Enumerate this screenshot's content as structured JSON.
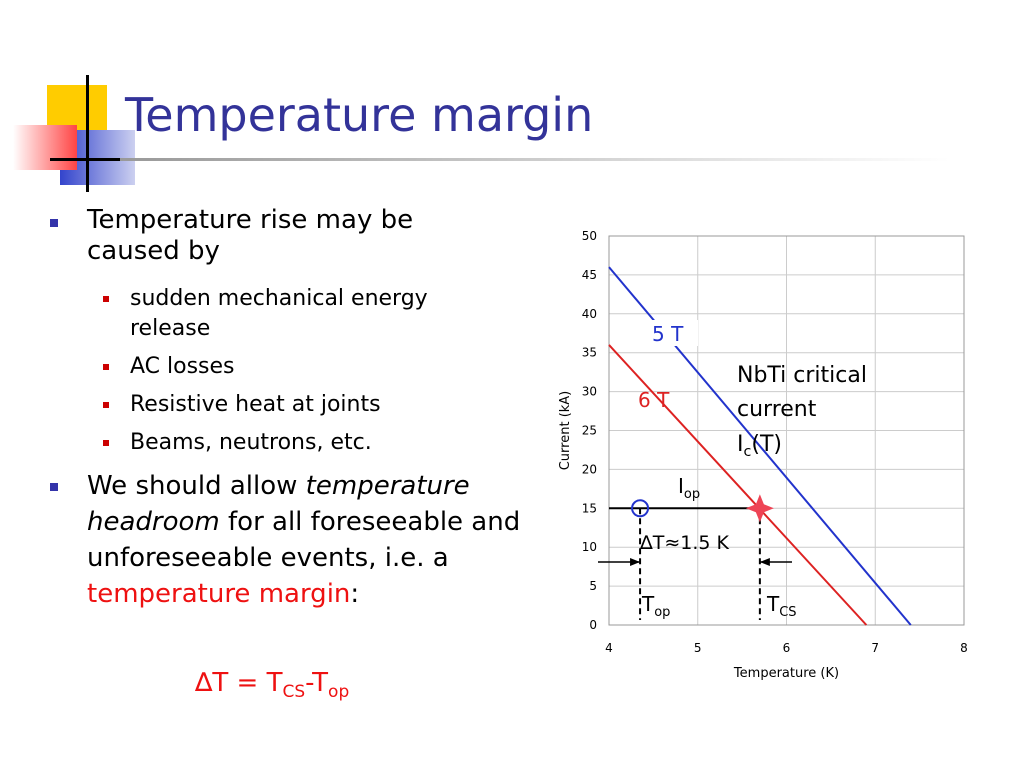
{
  "slide": {
    "title": "Temperature margin",
    "bullets": [
      {
        "text": "Temperature rise may be caused by",
        "sub": [
          "sudden mechanical energy release",
          "AC losses",
          "Resistive heat at joints",
          "Beams, neutrons, etc."
        ]
      },
      {
        "parts": [
          "We should allow ",
          "temperature headroom",
          " for all foreseeable and  unforeseeable events, i.e. a ",
          "temperature margin",
          ":"
        ]
      }
    ],
    "formula": [
      "∆T = T",
      "CS",
      "-T",
      "op"
    ]
  },
  "chart_data": {
    "type": "line",
    "xlabel": "Temperature (K)",
    "ylabel": "Current (kA)",
    "xlim": [
      4,
      8
    ],
    "xticks": [
      4,
      5,
      6,
      7,
      8
    ],
    "ylim": [
      0,
      50
    ],
    "yticks": [
      0,
      5,
      10,
      15,
      20,
      25,
      30,
      35,
      40,
      45,
      50
    ],
    "grid": true,
    "series": [
      {
        "name": "5 T",
        "color": "#2233cc",
        "x": [
          4,
          7.4
        ],
        "values": [
          46,
          0
        ]
      },
      {
        "name": "6 T",
        "color": "#dd2222",
        "x": [
          4,
          6.9
        ],
        "values": [
          36,
          0
        ]
      }
    ],
    "op_point": {
      "x": 4.35,
      "y": 15
    },
    "cs_point": {
      "x": 5.7,
      "y": 15
    },
    "annotations": {
      "curve_label": [
        "NbTi critical",
        "current"
      ],
      "ic": [
        "I",
        "c",
        "(T)"
      ],
      "iop": [
        "I",
        "op"
      ],
      "delta": "∆T≈1.5 K",
      "top": [
        "T",
        "op"
      ],
      "tcs": [
        "T",
        "CS"
      ]
    }
  }
}
